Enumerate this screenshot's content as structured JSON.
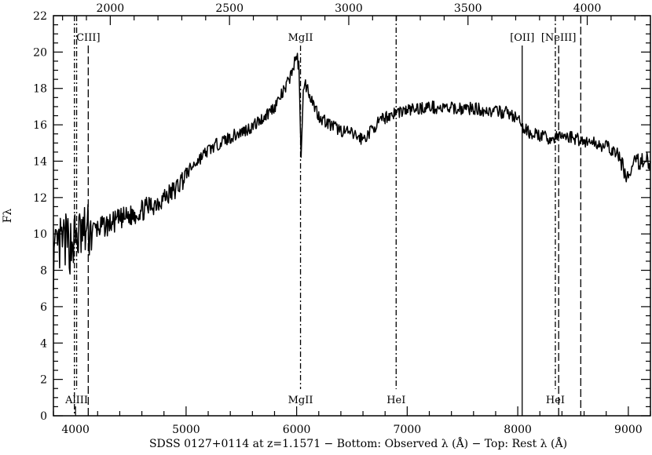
{
  "chart_data": {
    "type": "line",
    "title": "",
    "xlabel": "SDSS 0127+0114 at z=1.1571 − Bottom: Observed λ (Å) − Top: Rest λ (Å)",
    "ylabel": "Fλ",
    "xlim": [
      3800,
      9200
    ],
    "ylim": [
      0,
      22
    ],
    "redshift": 1.1571,
    "grid": false,
    "bottom_ticks": [
      4000,
      5000,
      6000,
      7000,
      8000,
      9000
    ],
    "top_ticks": [
      2000,
      2500,
      3000,
      3500,
      4000
    ],
    "y_ticks": [
      0,
      2,
      4,
      6,
      8,
      10,
      12,
      14,
      16,
      18,
      20,
      22
    ],
    "series": [
      {
        "x": [
          3800,
          3850,
          3900,
          3950,
          4000,
          4050,
          4100,
          4150,
          4200,
          4300,
          4400,
          4500,
          4600,
          4700,
          4800,
          4900,
          5000,
          5100,
          5200,
          5300,
          5400,
          5500,
          5600,
          5700,
          5800,
          5850,
          5900,
          5950,
          6000,
          6020,
          6040,
          6060,
          6080,
          6100,
          6150,
          6200,
          6300,
          6400,
          6500,
          6600,
          6650,
          6700,
          6800,
          6900,
          7000,
          7100,
          7200,
          7300,
          7400,
          7500,
          7600,
          7700,
          7800,
          7900,
          8000,
          8050,
          8100,
          8200,
          8300,
          8350,
          8400,
          8500,
          8600,
          8700,
          8800,
          8900,
          8950,
          9000,
          9050,
          9100,
          9150,
          9200
        ],
        "y": [
          8.5,
          9.2,
          9.6,
          9.4,
          9.8,
          9.9,
          10.1,
          10.2,
          10.3,
          10.5,
          10.8,
          11.0,
          11.3,
          11.6,
          12.0,
          12.4,
          13.3,
          14.0,
          14.6,
          15.0,
          15.3,
          15.6,
          15.9,
          16.4,
          17.0,
          17.5,
          18.0,
          18.8,
          19.8,
          19.2,
          14.5,
          17.8,
          18.2,
          18.0,
          17.2,
          16.5,
          16.0,
          15.7,
          15.5,
          15.2,
          15.5,
          15.9,
          16.4,
          16.7,
          16.8,
          16.9,
          17.0,
          16.9,
          16.9,
          16.9,
          16.9,
          16.8,
          16.7,
          16.7,
          16.3,
          15.8,
          15.6,
          15.4,
          15.2,
          15.3,
          15.4,
          15.3,
          15.1,
          15.0,
          14.8,
          14.4,
          13.7,
          13.0,
          13.8,
          14.0,
          14.1,
          14.0
        ]
      }
    ],
    "line_markers": [
      {
        "x": 3990,
        "label": "",
        "style": "dashdot",
        "label_pos": "none"
      },
      {
        "x": 4010,
        "label": "AlIII",
        "style": "dashdot",
        "label_pos": "bottom"
      },
      {
        "x": 4115,
        "label": "CIII]",
        "style": "longdash",
        "label_pos": "top"
      },
      {
        "x": 6035,
        "label": "MgII",
        "style": "dashdot",
        "label_pos": "both"
      },
      {
        "x": 6900,
        "label": "HeI",
        "style": "dashdot",
        "label_pos": "bottom"
      },
      {
        "x": 8040,
        "label": "[OII]",
        "style": "solid",
        "label_pos": "top"
      },
      {
        "x": 8340,
        "label": "HeI",
        "style": "dashdot",
        "label_pos": "bottom"
      },
      {
        "x": 8370,
        "label": "[NeIII]",
        "style": "longdash",
        "label_pos": "top"
      },
      {
        "x": 8570,
        "label": "",
        "style": "longdash",
        "label_pos": "none"
      }
    ]
  }
}
